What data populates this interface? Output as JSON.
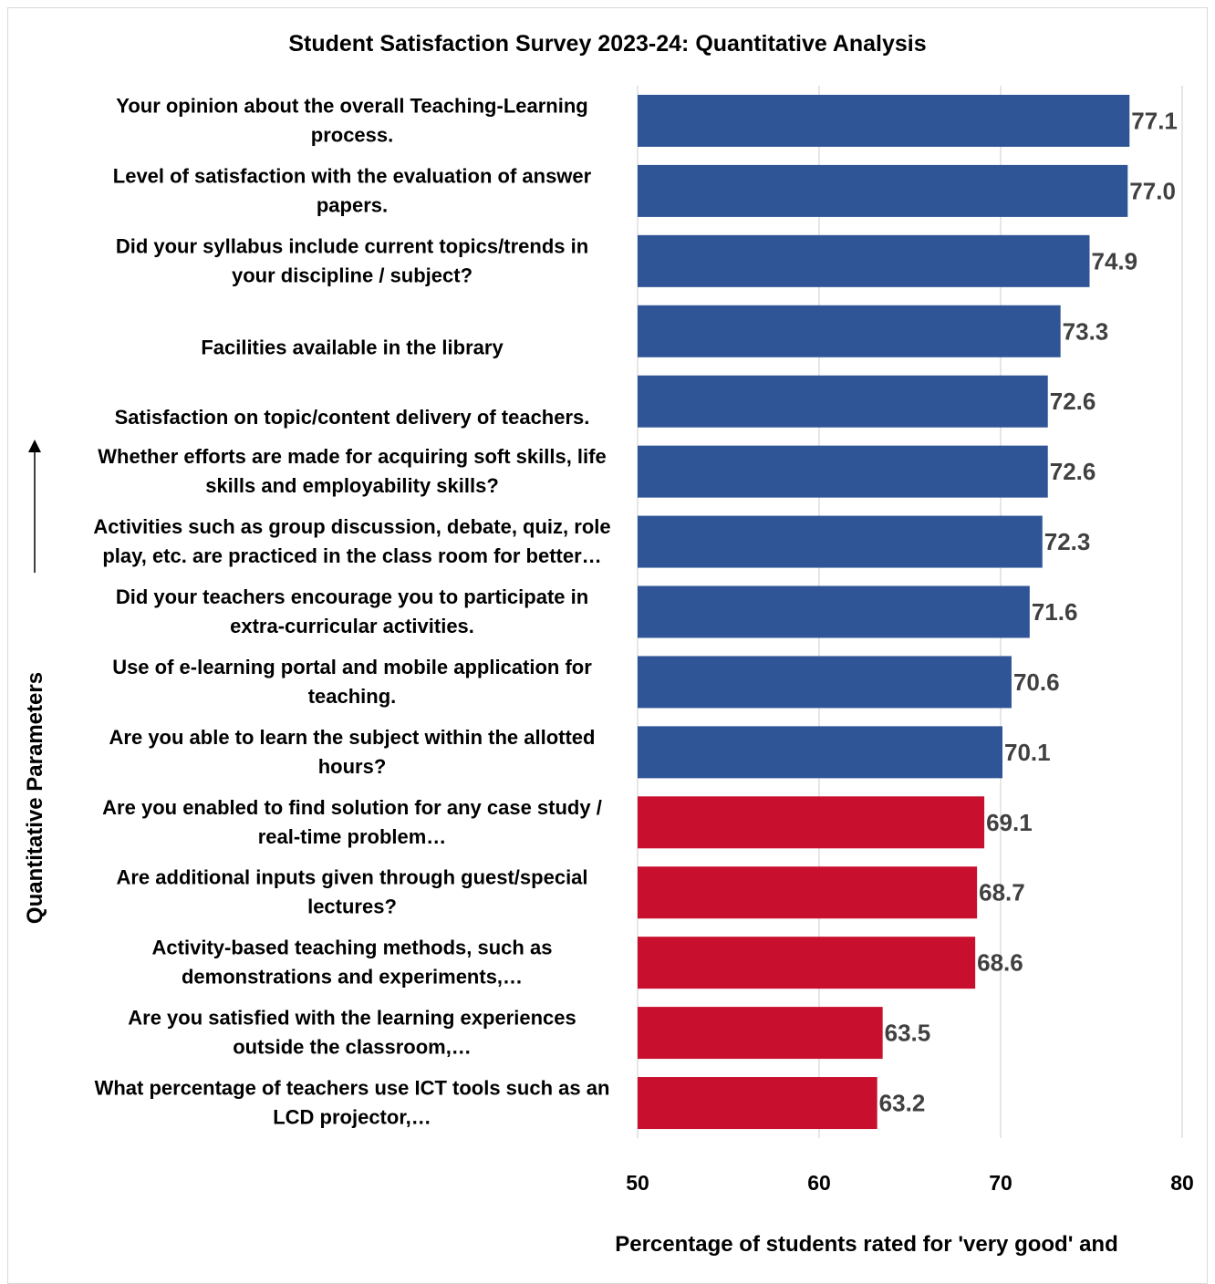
{
  "chart_data": {
    "type": "bar",
    "orientation": "horizontal",
    "title": "Student Satisfaction Survey 2023-24: Quantitative Analysis",
    "xlabel": "Percentage of students rated for 'very good' and",
    "ylabel": "Quantitative Parameters",
    "xlim": [
      50,
      80
    ],
    "xticks": [
      "50",
      "60",
      "70",
      "80"
    ],
    "grid": true,
    "colors": {
      "high": "#2f5597",
      "low": "#c8102e"
    },
    "categories": [
      [
        "Your opinion about the overall Teaching-Learning",
        "process."
      ],
      [
        "Level of satisfaction with the evaluation of answer",
        "papers."
      ],
      [
        "Did your syllabus include current topics/trends in",
        "your discipline / subject?"
      ],
      [
        "Facilities available in the library"
      ],
      [
        "Satisfaction on topic/content delivery of teachers."
      ],
      [
        "Whether efforts are made for acquiring soft skills, life",
        "skills and employability skills?"
      ],
      [
        "Activities such as group discussion, debate, quiz, role",
        "play, etc. are practiced in the class room for better…"
      ],
      [
        "Did your teachers encourage you to participate in",
        "extra-curricular activities."
      ],
      [
        "Use of e-learning portal and mobile application for",
        "teaching."
      ],
      [
        "Are you able to learn the subject within the allotted",
        "hours?"
      ],
      [
        "Are you enabled to find solution for any case study /",
        "real-time problem…"
      ],
      [
        "Are additional inputs given through guest/special",
        "lectures?"
      ],
      [
        "Activity-based teaching methods, such as",
        "demonstrations and experiments,…"
      ],
      [
        "Are you satisfied with the learning experiences",
        "outside the classroom,…"
      ],
      [
        "What percentage of teachers use ICT tools such as an",
        "LCD projector,…"
      ]
    ],
    "values": [
      77.1,
      77.0,
      74.9,
      73.3,
      72.6,
      72.6,
      72.3,
      71.6,
      70.6,
      70.1,
      69.1,
      68.7,
      68.6,
      63.5,
      63.2
    ],
    "value_labels": [
      "77.1",
      "77.0",
      "74.9",
      "73.3",
      "72.6",
      "72.6",
      "72.3",
      "71.6",
      "70.6",
      "70.1",
      "69.1",
      "68.7",
      "68.6",
      "63.5",
      "63.2"
    ],
    "bar_color_group": [
      "high",
      "high",
      "high",
      "high",
      "high",
      "high",
      "high",
      "high",
      "high",
      "high",
      "low",
      "low",
      "low",
      "low",
      "low"
    ]
  }
}
